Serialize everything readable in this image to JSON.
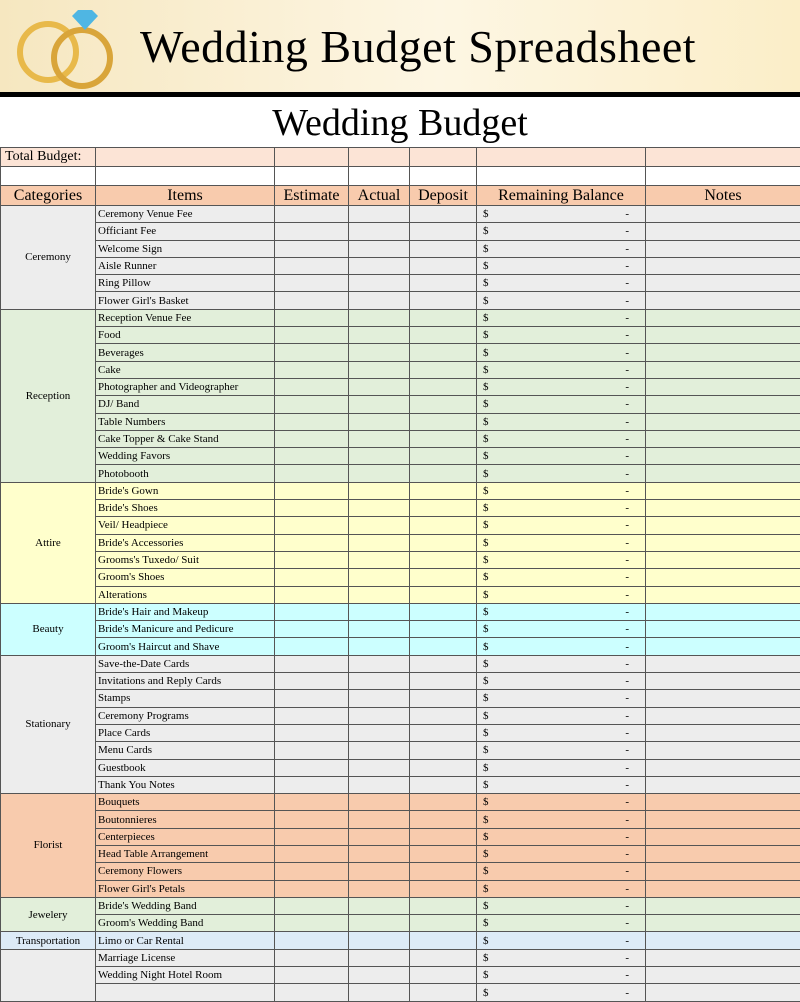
{
  "banner": {
    "title": "Wedding Budget Spreadsheet"
  },
  "sheet_title": "Wedding Budget",
  "total_label": "Total Budget:",
  "columns": [
    "Categories",
    "Items",
    "Estimate",
    "Actual",
    "Deposit",
    "Remaining Balance",
    "Notes"
  ],
  "currency": "$",
  "dash": "-",
  "groups": [
    {
      "name": "Ceremony",
      "color": "#ededed",
      "items": [
        "Ceremony Venue Fee",
        "Officiant Fee",
        "Welcome Sign",
        "Aisle Runner",
        "Ring Pillow",
        "Flower Girl's Basket"
      ]
    },
    {
      "name": "Reception",
      "color": "#e2efda",
      "items": [
        "Reception Venue Fee",
        "Food",
        "Beverages",
        "Cake",
        "Photographer and Videographer",
        "DJ/ Band",
        "Table Numbers",
        "Cake Topper & Cake Stand",
        "Wedding Favors",
        "Photobooth"
      ]
    },
    {
      "name": "Attire",
      "color": "#ffffcc",
      "items": [
        "Bride's Gown",
        "Bride's Shoes",
        "Veil/ Headpiece",
        "Bride's Accessories",
        "Grooms's Tuxedo/ Suit",
        "Groom's Shoes",
        "Alterations"
      ]
    },
    {
      "name": "Beauty",
      "color": "#ccffff",
      "items": [
        "Bride's Hair and Makeup",
        "Bride's Manicure and Pedicure",
        "Groom's Haircut and Shave"
      ]
    },
    {
      "name": "Stationary",
      "color": "#ededed",
      "items": [
        "Save-the-Date Cards",
        "Invitations and Reply Cards",
        "Stamps",
        "Ceremony Programs",
        "Place Cards",
        "Menu Cards",
        "Guestbook",
        "Thank You Notes"
      ]
    },
    {
      "name": "Florist",
      "color": "#f8cbad",
      "items": [
        "Bouquets",
        "Boutonnieres",
        "Centerpieces",
        "Head Table Arrangement",
        "Ceremony Flowers",
        "Flower Girl's Petals"
      ]
    },
    {
      "name": "Jewelery",
      "color": "#e2efda",
      "items": [
        "Bride's Wedding Band",
        "Groom's Wedding Band"
      ]
    },
    {
      "name": "Transportation",
      "color": "#ddebf7",
      "items": [
        "Limo or Car Rental"
      ]
    },
    {
      "name": "",
      "color": "#ededed",
      "items": [
        "Marriage License",
        "Wedding Night Hotel Room",
        ""
      ]
    }
  ]
}
